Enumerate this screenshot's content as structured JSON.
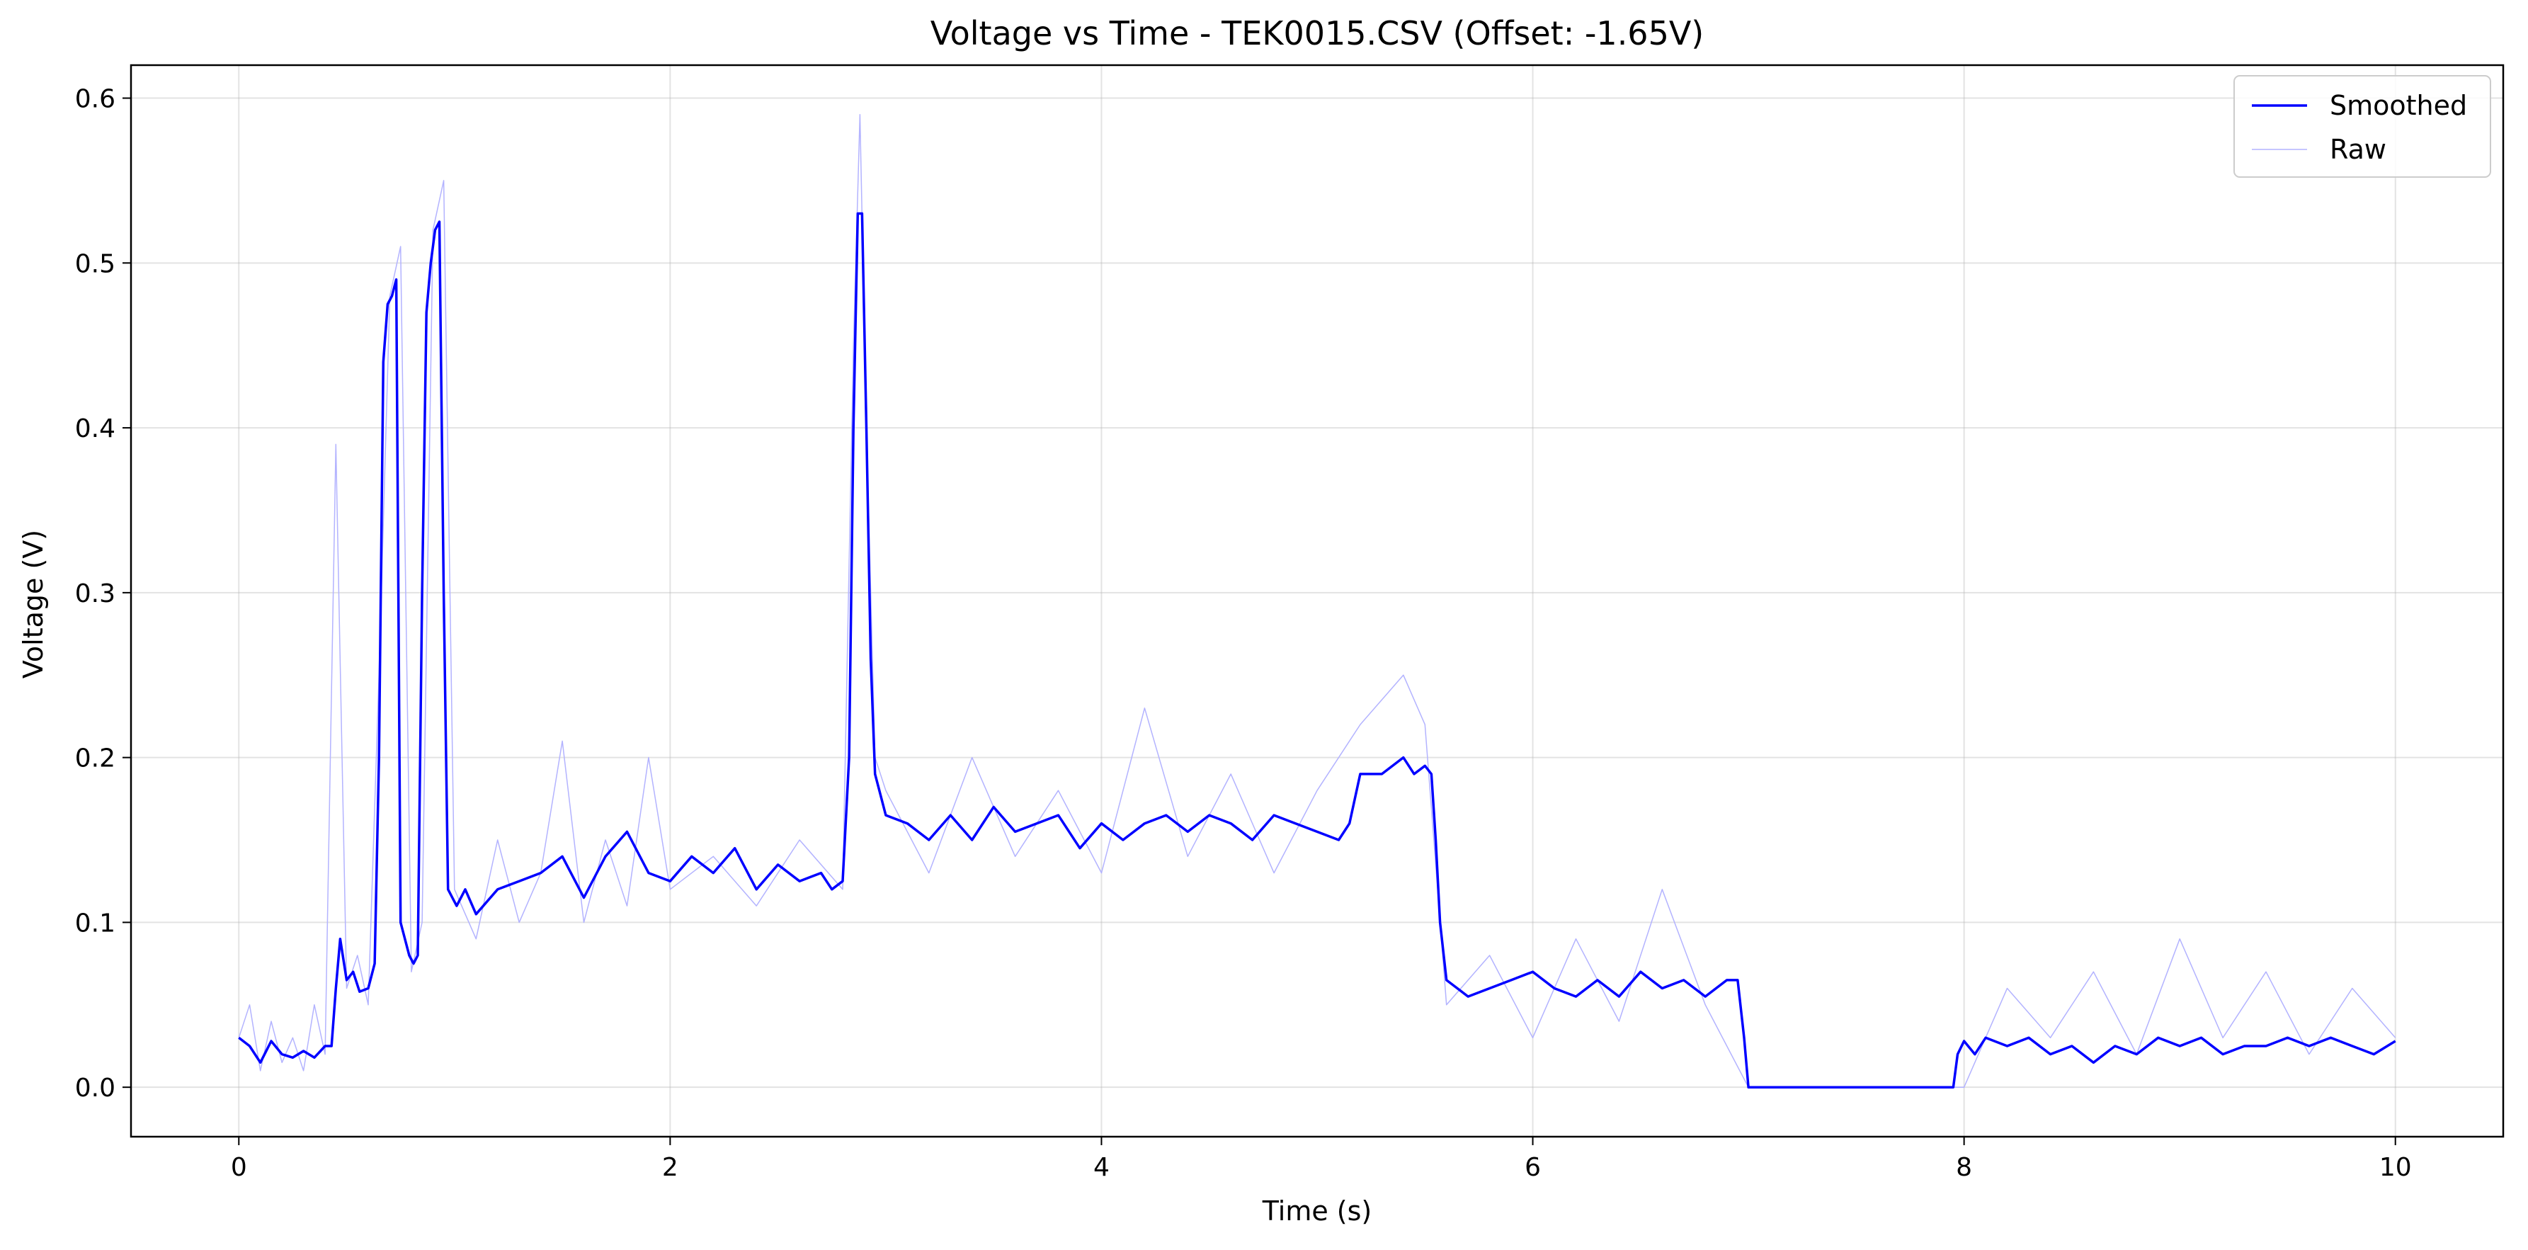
{
  "chart_data": {
    "type": "line",
    "title": "Voltage vs Time - TEK0015.CSV (Offset: -1.65V)",
    "xlabel": "Time (s)",
    "ylabel": "Voltage (V)",
    "xlim": [
      -0.5,
      10.5
    ],
    "ylim": [
      -0.03,
      0.62
    ],
    "xticks": [
      0,
      2,
      4,
      6,
      8,
      10
    ],
    "xtick_labels": [
      "0",
      "2",
      "4",
      "6",
      "8",
      "10"
    ],
    "yticks": [
      0.0,
      0.1,
      0.2,
      0.3,
      0.4,
      0.5,
      0.6
    ],
    "ytick_labels": [
      "0.0",
      "0.1",
      "0.2",
      "0.3",
      "0.4",
      "0.5",
      "0.6"
    ],
    "grid": true,
    "legend_position": "top-right",
    "colors": {
      "smoothed": "#0000ff",
      "raw": "#b3b3ff"
    },
    "series": [
      {
        "name": "Smoothed",
        "style": "solid",
        "x": [
          0,
          0.05,
          0.1,
          0.15,
          0.2,
          0.25,
          0.3,
          0.35,
          0.4,
          0.43,
          0.45,
          0.47,
          0.5,
          0.53,
          0.56,
          0.6,
          0.63,
          0.65,
          0.67,
          0.69,
          0.71,
          0.73,
          0.75,
          0.77,
          0.79,
          0.81,
          0.83,
          0.85,
          0.87,
          0.89,
          0.9,
          0.91,
          0.93,
          0.95,
          0.97,
          0.99,
          1.01,
          1.05,
          1.1,
          1.2,
          1.3,
          1.4,
          1.5,
          1.6,
          1.7,
          1.8,
          1.9,
          2.0,
          2.1,
          2.2,
          2.3,
          2.4,
          2.5,
          2.6,
          2.7,
          2.75,
          2.8,
          2.83,
          2.85,
          2.87,
          2.89,
          2.91,
          2.93,
          2.95,
          2.97,
          3.0,
          3.1,
          3.2,
          3.3,
          3.4,
          3.5,
          3.6,
          3.7,
          3.8,
          3.9,
          4.0,
          4.1,
          4.2,
          4.3,
          4.4,
          4.5,
          4.6,
          4.7,
          4.8,
          4.9,
          5.0,
          5.1,
          5.15,
          5.2,
          5.3,
          5.4,
          5.45,
          5.5,
          5.53,
          5.55,
          5.57,
          5.6,
          5.65,
          5.7,
          5.8,
          5.9,
          6.0,
          6.1,
          6.2,
          6.3,
          6.4,
          6.5,
          6.6,
          6.7,
          6.8,
          6.9,
          6.95,
          6.98,
          7.0,
          7.02,
          7.2,
          7.5,
          7.8,
          7.95,
          7.97,
          8.0,
          8.05,
          8.1,
          8.2,
          8.3,
          8.4,
          8.5,
          8.6,
          8.7,
          8.8,
          8.9,
          9.0,
          9.1,
          9.2,
          9.3,
          9.4,
          9.5,
          9.6,
          9.7,
          9.8,
          9.9,
          10.0
        ],
        "y": [
          0.03,
          0.025,
          0.015,
          0.028,
          0.02,
          0.018,
          0.022,
          0.018,
          0.025,
          0.025,
          0.06,
          0.09,
          0.065,
          0.07,
          0.058,
          0.06,
          0.075,
          0.2,
          0.44,
          0.475,
          0.48,
          0.49,
          0.1,
          0.09,
          0.08,
          0.075,
          0.08,
          0.3,
          0.47,
          0.5,
          0.51,
          0.52,
          0.525,
          0.3,
          0.12,
          0.115,
          0.11,
          0.12,
          0.105,
          0.12,
          0.125,
          0.13,
          0.14,
          0.115,
          0.14,
          0.155,
          0.13,
          0.125,
          0.14,
          0.13,
          0.145,
          0.12,
          0.135,
          0.125,
          0.13,
          0.12,
          0.125,
          0.2,
          0.4,
          0.53,
          0.53,
          0.4,
          0.26,
          0.19,
          0.18,
          0.165,
          0.16,
          0.15,
          0.165,
          0.15,
          0.17,
          0.155,
          0.16,
          0.165,
          0.145,
          0.16,
          0.15,
          0.16,
          0.165,
          0.155,
          0.165,
          0.16,
          0.15,
          0.165,
          0.16,
          0.155,
          0.15,
          0.16,
          0.19,
          0.19,
          0.2,
          0.19,
          0.195,
          0.19,
          0.15,
          0.1,
          0.065,
          0.06,
          0.055,
          0.06,
          0.065,
          0.07,
          0.06,
          0.055,
          0.065,
          0.055,
          0.07,
          0.06,
          0.065,
          0.055,
          0.065,
          0.065,
          0.03,
          0.0,
          0.0,
          0.0,
          0.0,
          0.0,
          0.0,
          0.02,
          0.028,
          0.02,
          0.03,
          0.025,
          0.03,
          0.02,
          0.025,
          0.015,
          0.025,
          0.02,
          0.03,
          0.025,
          0.03,
          0.02,
          0.025,
          0.025,
          0.03,
          0.025,
          0.03,
          0.025,
          0.02,
          0.028
        ]
      },
      {
        "name": "Raw",
        "style": "thin",
        "x": [
          0,
          0.05,
          0.1,
          0.15,
          0.2,
          0.25,
          0.3,
          0.35,
          0.4,
          0.45,
          0.5,
          0.55,
          0.6,
          0.65,
          0.7,
          0.75,
          0.8,
          0.85,
          0.9,
          0.95,
          1.0,
          1.1,
          1.2,
          1.3,
          1.4,
          1.5,
          1.6,
          1.7,
          1.8,
          1.9,
          2.0,
          2.2,
          2.4,
          2.6,
          2.8,
          2.85,
          2.88,
          2.91,
          2.95,
          3.0,
          3.2,
          3.4,
          3.6,
          3.8,
          4.0,
          4.2,
          4.4,
          4.6,
          4.8,
          5.0,
          5.2,
          5.4,
          5.5,
          5.6,
          5.8,
          6.0,
          6.2,
          6.4,
          6.6,
          6.8,
          7.0,
          7.5,
          8.0,
          8.2,
          8.4,
          8.6,
          8.8,
          9.0,
          9.2,
          9.4,
          9.6,
          9.8,
          10.0
        ],
        "y": [
          0.03,
          0.05,
          0.01,
          0.04,
          0.015,
          0.03,
          0.01,
          0.05,
          0.02,
          0.39,
          0.06,
          0.08,
          0.05,
          0.25,
          0.48,
          0.51,
          0.07,
          0.1,
          0.52,
          0.55,
          0.12,
          0.09,
          0.15,
          0.1,
          0.13,
          0.21,
          0.1,
          0.15,
          0.11,
          0.2,
          0.12,
          0.14,
          0.11,
          0.15,
          0.12,
          0.45,
          0.59,
          0.4,
          0.2,
          0.18,
          0.13,
          0.2,
          0.14,
          0.18,
          0.13,
          0.23,
          0.14,
          0.19,
          0.13,
          0.18,
          0.22,
          0.25,
          0.22,
          0.05,
          0.08,
          0.03,
          0.09,
          0.04,
          0.12,
          0.05,
          0.0,
          0.0,
          0.0,
          0.06,
          0.03,
          0.07,
          0.02,
          0.09,
          0.03,
          0.07,
          0.02,
          0.06,
          0.03
        ]
      }
    ]
  }
}
